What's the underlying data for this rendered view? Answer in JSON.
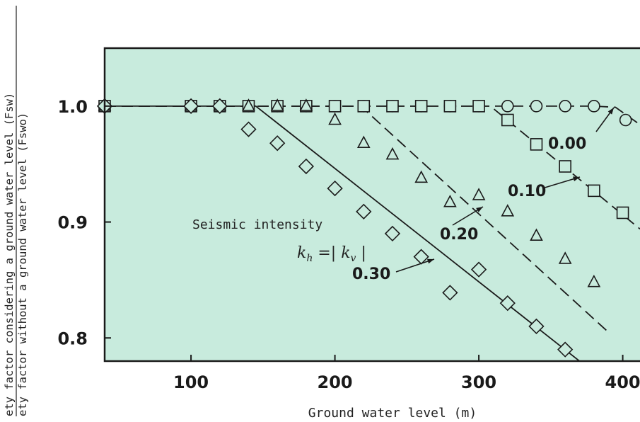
{
  "colors": {
    "plot_bg": "#c8ebdd",
    "ink": "#1a1a1a"
  },
  "ylabel": {
    "numerator": "ety factor considering a ground water level (Fsw)",
    "denominator": "ety factor without a ground water level   (Fswo)"
  },
  "annotations": {
    "seismic_intensity": "Seismic intensity",
    "kh_formula_main": "k",
    "kh_formula_sub": "h",
    "kh_formula_eq": " =| k",
    "kv_sub": "v",
    "kv_close": " |",
    "label_000": "0.00",
    "label_010": "0.10",
    "label_020": "0.20",
    "label_030": "0.30"
  },
  "chart_data": {
    "type": "scatter",
    "xlabel": "Ground water level   (m)",
    "ylabel": "",
    "xlim": [
      40,
      412
    ],
    "ylim": [
      0.78,
      1.05
    ],
    "xticks": [
      100,
      200,
      300,
      400
    ],
    "xtick_labels": [
      "100",
      "200",
      "300",
      "400"
    ],
    "yticks": [
      0.8,
      0.9,
      1.0
    ],
    "ytick_labels": [
      "0.8",
      "0.9",
      "1.0"
    ],
    "grid": false,
    "series": [
      {
        "name": "0.00",
        "marker": "circle",
        "x": [
          40,
          100,
          120,
          140,
          160,
          180,
          200,
          220,
          240,
          260,
          280,
          300,
          320,
          340,
          360,
          380,
          402
        ],
        "y": [
          1.0,
          1.0,
          1.0,
          1.0,
          1.0,
          1.0,
          1.0,
          1.0,
          1.0,
          1.0,
          1.0,
          1.0,
          1.0,
          1.0,
          1.0,
          1.0,
          0.988
        ],
        "line": [
          [
            40,
            1.0
          ],
          [
            380,
            1.0
          ],
          [
            395,
            0.999
          ],
          [
            412,
            0.984
          ]
        ]
      },
      {
        "name": "0.10",
        "marker": "square",
        "x": [
          40,
          100,
          120,
          140,
          160,
          180,
          200,
          220,
          240,
          260,
          280,
          300,
          320,
          340,
          360,
          380,
          400
        ],
        "y": [
          1.0,
          1.0,
          1.0,
          1.0,
          1.0,
          1.0,
          1.0,
          1.0,
          1.0,
          1.0,
          1.0,
          1.0,
          0.988,
          0.967,
          0.948,
          0.927,
          0.908
        ],
        "line": [
          [
            40,
            1.0
          ],
          [
            308,
            1.0
          ],
          [
            412,
            0.894
          ]
        ]
      },
      {
        "name": "0.20",
        "marker": "triangle",
        "x": [
          40,
          100,
          120,
          140,
          160,
          180,
          200,
          220,
          240,
          260,
          280,
          300,
          320,
          340,
          360,
          380
        ],
        "y": [
          1.0,
          1.0,
          1.0,
          1.0,
          1.0,
          1.0,
          0.988,
          0.968,
          0.958,
          0.938,
          0.917,
          0.923,
          0.909,
          0.888,
          0.868,
          0.848
        ],
        "line": [
          [
            40,
            1.0
          ],
          [
            218,
            1.0
          ],
          [
            390,
            0.805
          ]
        ]
      },
      {
        "name": "0.30",
        "marker": "diamond",
        "x": [
          40,
          100,
          120,
          140,
          160,
          180,
          200,
          220,
          240,
          260,
          280,
          300,
          320,
          340,
          360
        ],
        "y": [
          1.0,
          1.0,
          1.0,
          0.98,
          0.968,
          0.948,
          0.929,
          0.909,
          0.89,
          0.87,
          0.839,
          0.859,
          0.83,
          0.81,
          0.79
        ],
        "line": [
          [
            40,
            1.0
          ],
          [
            145,
            1.0
          ],
          [
            370,
            0.78
          ]
        ]
      }
    ]
  }
}
